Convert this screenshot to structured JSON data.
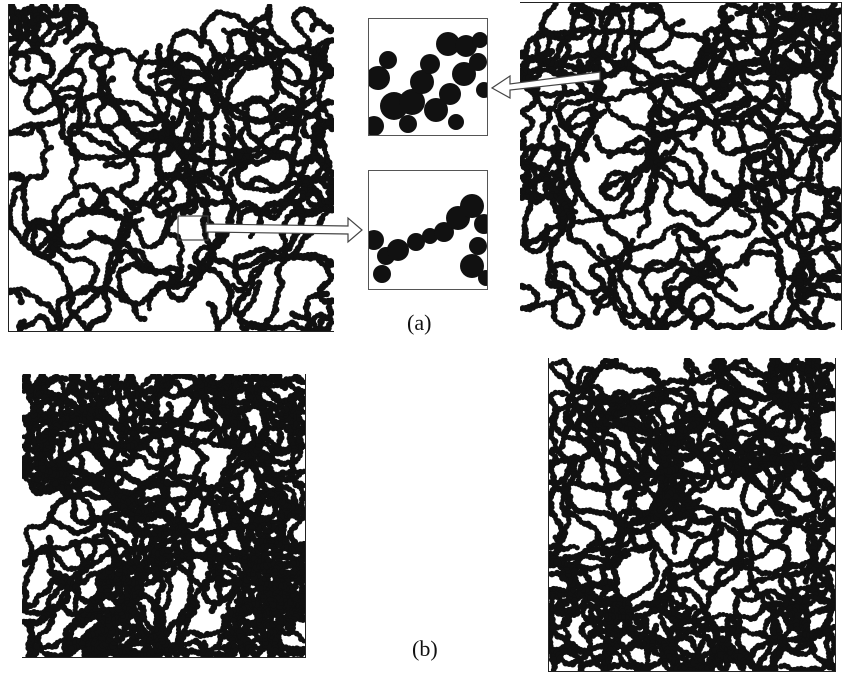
{
  "figure": {
    "caption_a": "(a)",
    "caption_b": "(b)"
  },
  "colors": {
    "background": "#ffffff",
    "particle": "#111111",
    "frame": "#222222",
    "arrow_stroke": "#444444"
  },
  "panels": [
    {
      "id": "top-left-aggregate",
      "density": 0.55,
      "seed": 11
    },
    {
      "id": "zoom-inset-upper",
      "seed": 3
    },
    {
      "id": "zoom-inset-lower",
      "seed": 7
    },
    {
      "id": "top-right-aggregate",
      "density": 0.62,
      "seed": 23
    },
    {
      "id": "bottom-left-aggregate",
      "density": 0.85,
      "seed": 41
    },
    {
      "id": "bottom-right-aggregate",
      "density": 0.75,
      "seed": 57
    }
  ]
}
